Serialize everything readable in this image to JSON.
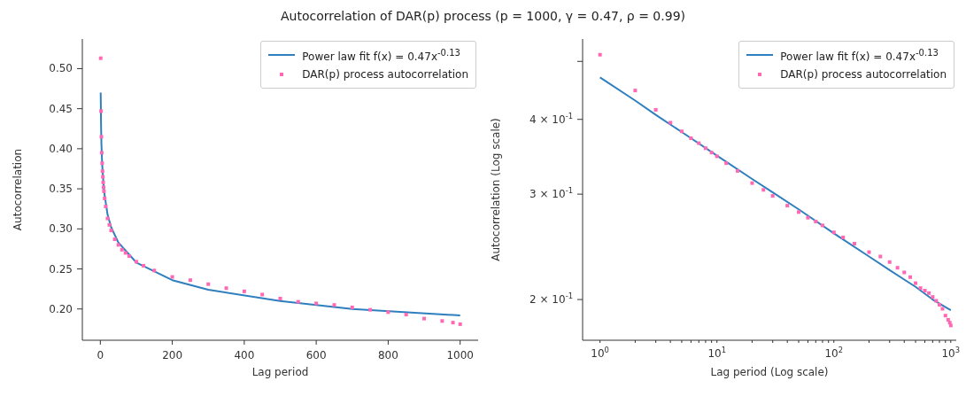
{
  "chart_data": [
    {
      "type": "scatter",
      "annotations": [
        "Autocorrelation of DAR(p) process (p = 1000, γ = 0.47, ρ = 0.99)"
      ],
      "xlabel": "Lag period",
      "ylabel": "Autocorrelation",
      "xlim": [
        -50,
        1050
      ],
      "ylim": [
        0.161,
        0.537
      ],
      "xticks": [
        0,
        200,
        400,
        600,
        800,
        1000
      ],
      "yticks": [
        {
          "value": 0.2,
          "label": "0.20"
        },
        {
          "value": 0.25,
          "label": "0.25"
        },
        {
          "value": 0.3,
          "label": "0.30"
        },
        {
          "value": 0.35,
          "label": "0.35"
        },
        {
          "value": 0.4,
          "label": "0.40"
        },
        {
          "value": 0.45,
          "label": "0.45"
        },
        {
          "value": 0.5,
          "label": "0.50"
        }
      ],
      "grid": false,
      "legend": "top right",
      "series": [
        {
          "name": "Power law fit f(x) = 0.47x$^{-0.13}$",
          "type": "line",
          "marker": "none",
          "color": "#2f7fbf",
          "x": [
            1,
            2,
            3,
            5,
            10,
            20,
            30,
            50,
            100,
            200,
            300,
            500,
            700,
            1000
          ],
          "values": [
            0.47,
            0.43,
            0.407,
            0.381,
            0.348,
            0.318,
            0.302,
            0.283,
            0.258,
            0.236,
            0.224,
            0.21,
            0.2,
            0.192
          ]
        },
        {
          "name": "DAR(p) process autocorrelation",
          "type": "scatter",
          "marker": "square",
          "color": "#ff69b4",
          "x": [
            1,
            2,
            3,
            4,
            5,
            6,
            7,
            8,
            9,
            10,
            12,
            15,
            20,
            25,
            30,
            40,
            50,
            60,
            70,
            80,
            100,
            120,
            150,
            200,
            250,
            300,
            350,
            400,
            450,
            500,
            550,
            600,
            650,
            700,
            750,
            800,
            850,
            900,
            950,
            980,
            1000
          ],
          "values": [
            0.513,
            0.447,
            0.415,
            0.395,
            0.382,
            0.372,
            0.365,
            0.358,
            0.352,
            0.347,
            0.338,
            0.328,
            0.313,
            0.305,
            0.298,
            0.287,
            0.28,
            0.274,
            0.27,
            0.266,
            0.259,
            0.254,
            0.248,
            0.24,
            0.236,
            0.231,
            0.226,
            0.222,
            0.218,
            0.213,
            0.209,
            0.207,
            0.205,
            0.202,
            0.199,
            0.196,
            0.193,
            0.188,
            0.185,
            0.183,
            0.181
          ]
        }
      ]
    },
    {
      "type": "scatter",
      "xlabel": "Lag period (Log scale)",
      "ylabel": "Autocorrelation (Log scale)",
      "log": "xy",
      "xlim": [
        0.71,
        1114
      ],
      "ylim": [
        0.171,
        0.545
      ],
      "xticks": [
        {
          "value": 1,
          "label": "10$^{0}$"
        },
        {
          "value": 2,
          "label": null
        },
        {
          "value": 3,
          "label": null
        },
        {
          "value": 4,
          "label": null
        },
        {
          "value": 5,
          "label": null
        },
        {
          "value": 6,
          "label": null
        },
        {
          "value": 7,
          "label": null
        },
        {
          "value": 8,
          "label": null
        },
        {
          "value": 9,
          "label": null
        },
        {
          "value": 10,
          "label": "10$^{1}$"
        },
        {
          "value": 20,
          "label": null
        },
        {
          "value": 30,
          "label": null
        },
        {
          "value": 40,
          "label": null
        },
        {
          "value": 50,
          "label": null
        },
        {
          "value": 60,
          "label": null
        },
        {
          "value": 70,
          "label": null
        },
        {
          "value": 80,
          "label": null
        },
        {
          "value": 90,
          "label": null
        },
        {
          "value": 100,
          "label": "10$^{2}$"
        },
        {
          "value": 200,
          "label": null
        },
        {
          "value": 300,
          "label": null
        },
        {
          "value": 400,
          "label": null
        },
        {
          "value": 500,
          "label": null
        },
        {
          "value": 600,
          "label": null
        },
        {
          "value": 700,
          "label": null
        },
        {
          "value": 800,
          "label": null
        },
        {
          "value": 900,
          "label": null
        },
        {
          "value": 1000,
          "label": "10$^{3}$"
        }
      ],
      "yticks": [
        {
          "value": 0.2,
          "label": "2 × 10$^{-1}$"
        },
        {
          "value": 0.3,
          "label": "3 × 10$^{-1}$"
        },
        {
          "value": 0.4,
          "label": "4 × 10$^{-1}$"
        },
        {
          "value": 0.5,
          "label": null
        }
      ],
      "grid": false,
      "legend": "top right",
      "series": [
        {
          "name": "Power law fit f(x) = 0.47x$^{-0.13}$",
          "type": "line",
          "marker": "none",
          "color": "#2f7fbf",
          "x": [
            1,
            2,
            3,
            5,
            10,
            20,
            30,
            50,
            100,
            200,
            300,
            500,
            700,
            1000
          ],
          "values": [
            0.47,
            0.43,
            0.407,
            0.381,
            0.348,
            0.318,
            0.302,
            0.283,
            0.258,
            0.236,
            0.224,
            0.21,
            0.2,
            0.192
          ]
        },
        {
          "name": "DAR(p) process autocorrelation",
          "type": "scatter",
          "marker": "square",
          "color": "#ff69b4",
          "x": [
            1,
            2,
            3,
            4,
            5,
            6,
            7,
            8,
            9,
            10,
            12,
            15,
            20,
            25,
            30,
            40,
            50,
            60,
            70,
            80,
            100,
            120,
            150,
            200,
            250,
            300,
            350,
            400,
            450,
            500,
            550,
            600,
            650,
            700,
            750,
            800,
            850,
            900,
            950,
            980,
            1000
          ],
          "values": [
            0.513,
            0.447,
            0.415,
            0.395,
            0.382,
            0.372,
            0.365,
            0.358,
            0.352,
            0.347,
            0.338,
            0.328,
            0.313,
            0.305,
            0.298,
            0.287,
            0.28,
            0.274,
            0.27,
            0.266,
            0.259,
            0.254,
            0.248,
            0.24,
            0.236,
            0.231,
            0.226,
            0.222,
            0.218,
            0.213,
            0.209,
            0.207,
            0.205,
            0.202,
            0.199,
            0.196,
            0.193,
            0.188,
            0.185,
            0.183,
            0.181
          ]
        }
      ]
    }
  ]
}
